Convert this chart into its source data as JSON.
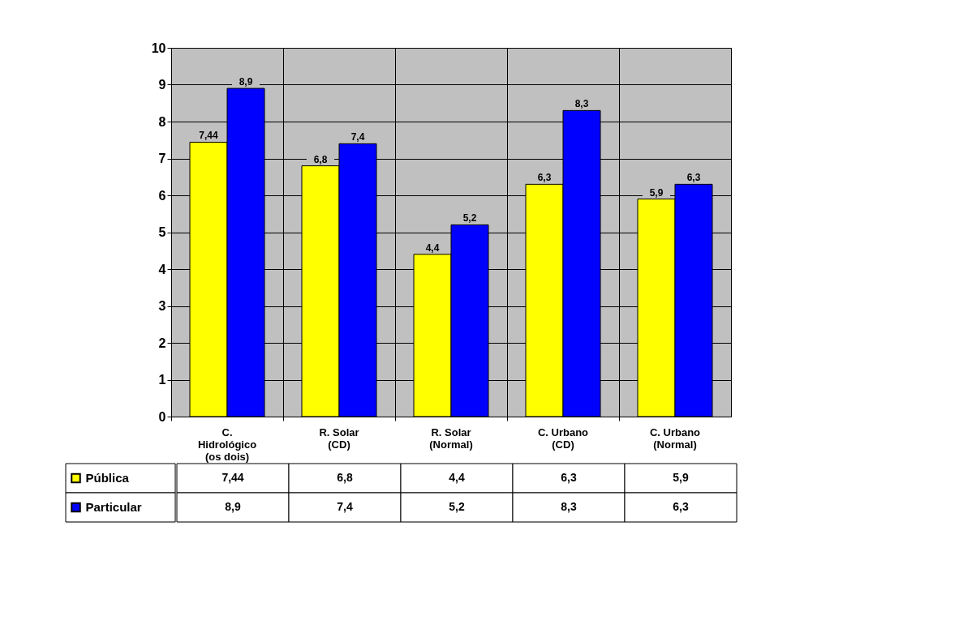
{
  "chart_data": {
    "type": "bar",
    "categories": [
      "C.\nHidrológico\n(os dois)",
      "R. Solar\n(CD)",
      "R. Solar\n(Normal)",
      "C. Urbano\n(CD)",
      "C. Urbano\n(Normal)"
    ],
    "series": [
      {
        "name": "Pública",
        "color": "#ffff00",
        "values": [
          7.44,
          6.8,
          4.4,
          6.3,
          5.9
        ],
        "value_labels": [
          "7,44",
          "6,8",
          "4,4",
          "6,3",
          "5,9"
        ]
      },
      {
        "name": "Particular",
        "color": "#0000ff",
        "values": [
          8.9,
          7.4,
          5.2,
          8.3,
          6.3
        ],
        "value_labels": [
          "8,9",
          "7,4",
          "5,2",
          "8,3",
          "6,3"
        ]
      }
    ],
    "ylim": [
      0,
      10
    ],
    "yticks": [
      0,
      1,
      2,
      3,
      4,
      5,
      6,
      7,
      8,
      9,
      10
    ],
    "grid": true,
    "legend": "bottom left"
  }
}
